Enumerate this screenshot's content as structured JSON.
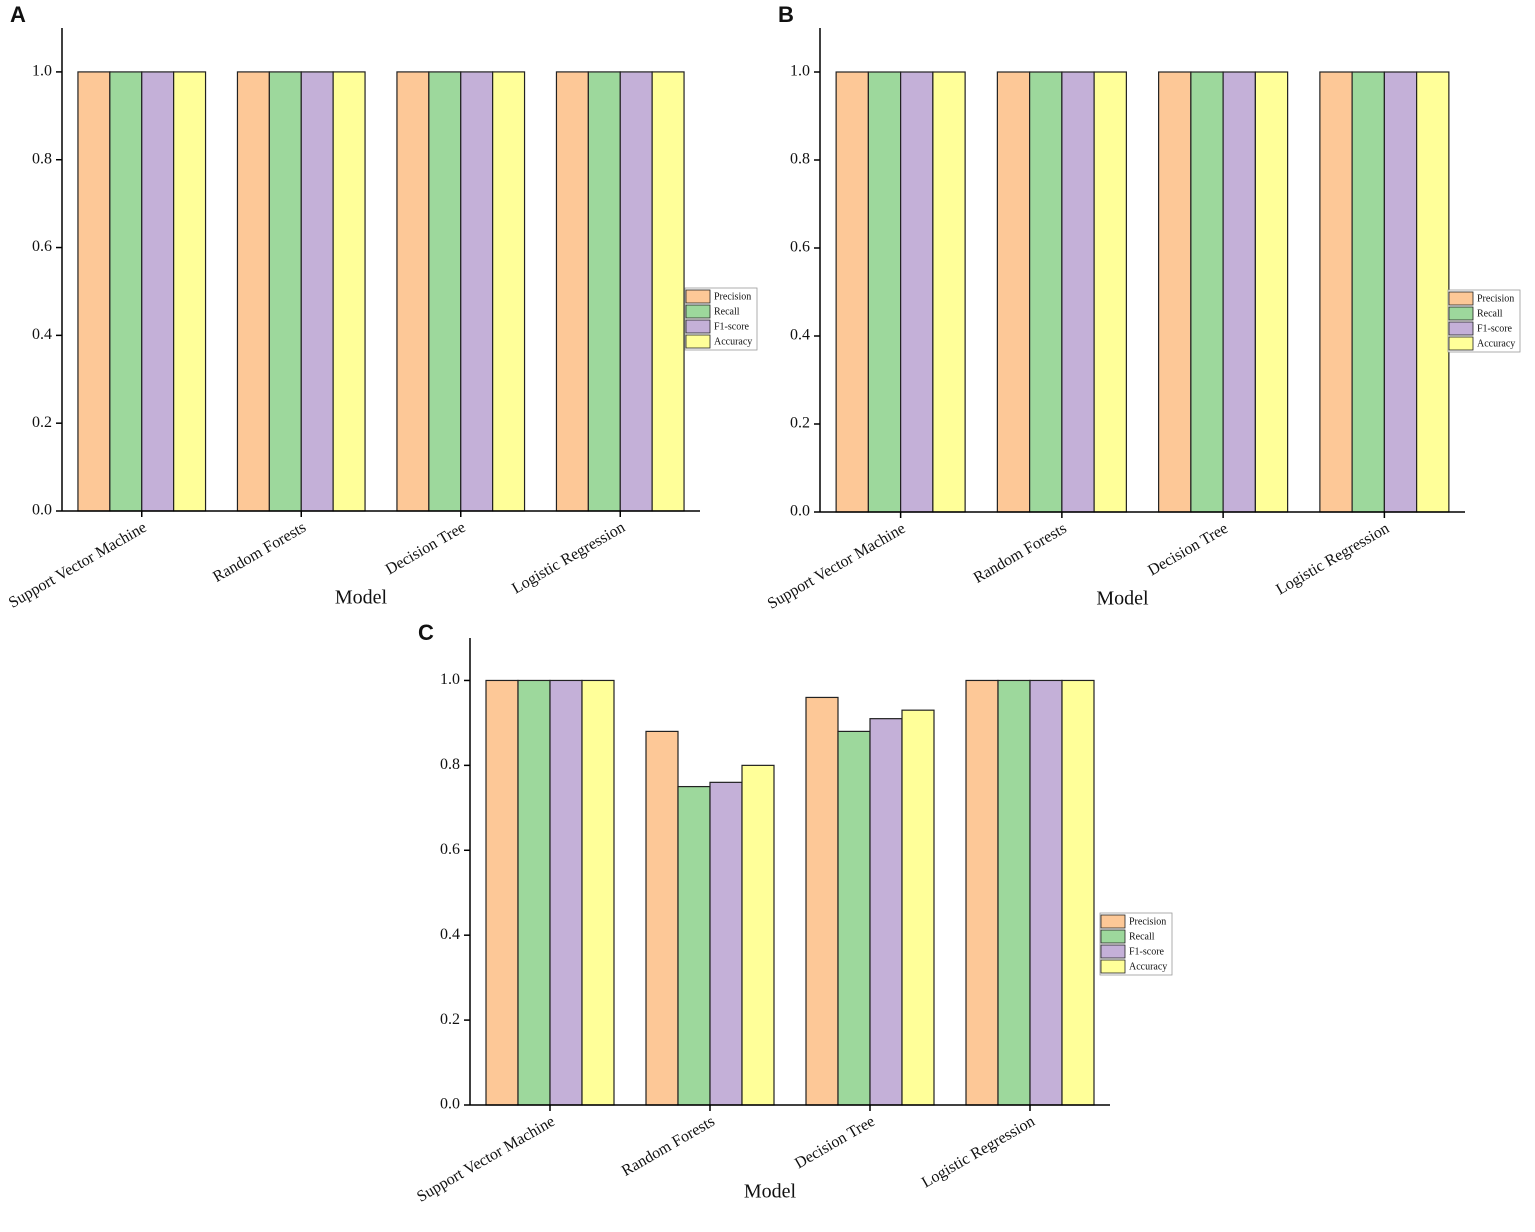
{
  "chart_data": [
    {
      "type": "bar",
      "label": "A",
      "x_label": "Model",
      "categories": [
        "Support Vector Machine",
        "Random Forests",
        "Decision Tree",
        "Logistic Regression"
      ],
      "series": [
        {
          "name": "Precision",
          "color": "#fdc897",
          "values": [
            1.0,
            1.0,
            1.0,
            1.0
          ]
        },
        {
          "name": "Recall",
          "color": "#9dd89c",
          "values": [
            1.0,
            1.0,
            1.0,
            1.0
          ]
        },
        {
          "name": "F1-score",
          "color": "#c4b0d8",
          "values": [
            1.0,
            1.0,
            1.0,
            1.0
          ]
        },
        {
          "name": "Accuracy",
          "color": "#ffff99",
          "values": [
            1.0,
            1.0,
            1.0,
            1.0
          ]
        }
      ],
      "ylim": [
        0,
        1.1
      ],
      "yticks": [
        {
          "value": 0,
          "label": "0.0"
        },
        0.2,
        0.4,
        0.6,
        0.8,
        {
          "value": 1,
          "label": "1.0"
        }
      ],
      "legend": "right"
    },
    {
      "type": "bar",
      "label": "B",
      "x_label": "Model",
      "categories": [
        "Support Vector Machine",
        "Random Forests",
        "Decision Tree",
        "Logistic Regression"
      ],
      "series": [
        {
          "name": "Precision",
          "color": "#fdc897",
          "values": [
            1.0,
            1.0,
            1.0,
            1.0
          ]
        },
        {
          "name": "Recall",
          "color": "#9dd89c",
          "values": [
            1.0,
            1.0,
            1.0,
            1.0
          ]
        },
        {
          "name": "F1-score",
          "color": "#c4b0d8",
          "values": [
            1.0,
            1.0,
            1.0,
            1.0
          ]
        },
        {
          "name": "Accuracy",
          "color": "#ffff99",
          "values": [
            1.0,
            1.0,
            1.0,
            1.0
          ]
        }
      ],
      "ylim": [
        0,
        1.1
      ],
      "yticks": [
        {
          "value": 0,
          "label": "0.0"
        },
        0.2,
        0.4,
        0.6,
        0.8,
        {
          "value": 1,
          "label": "1.0"
        }
      ],
      "legend": "right"
    },
    {
      "type": "bar",
      "label": "C",
      "x_label": "Model",
      "categories": [
        "Support Vector Machine",
        "Random Forests",
        "Decision Tree",
        "Logistic Regression"
      ],
      "series": [
        {
          "name": "Precision",
          "color": "#fdc897",
          "values": [
            1.0,
            0.88,
            0.96,
            1.0
          ]
        },
        {
          "name": "Recall",
          "color": "#9dd89c",
          "values": [
            1.0,
            0.75,
            0.88,
            1.0
          ]
        },
        {
          "name": "F1-score",
          "color": "#c4b0d8",
          "values": [
            1.0,
            0.76,
            0.91,
            1.0
          ]
        },
        {
          "name": "Accuracy",
          "color": "#ffff99",
          "values": [
            1.0,
            0.8,
            0.93,
            1.0
          ]
        }
      ],
      "ylim": [
        0,
        1.1
      ],
      "yticks": [
        {
          "value": 0,
          "label": "0.0"
        },
        0.2,
        0.4,
        0.6,
        0.8,
        {
          "value": 1,
          "label": "1.0"
        }
      ],
      "legend": "right"
    }
  ]
}
